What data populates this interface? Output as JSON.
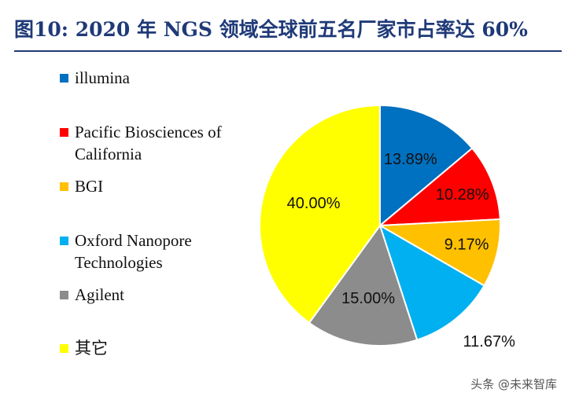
{
  "title": "图10:  2020 年 NGS 领域全球前五名厂家市占率达 60%",
  "watermark": "头条 @未来智库",
  "chart_data": {
    "type": "pie",
    "title": "",
    "legend_position": "left",
    "slices": [
      {
        "name": "illumina",
        "value": 13.89,
        "label": "13.89%",
        "color": "#0070c0"
      },
      {
        "name": "Pacific Biosciences of\nCalifornia",
        "value": 10.28,
        "label": "10.28%",
        "color": "#ff0000"
      },
      {
        "name": "BGI",
        "value": 9.17,
        "label": "9.17%",
        "color": "#ffc000"
      },
      {
        "name": "Oxford Nanopore\nTechnologies",
        "value": 11.67,
        "label": "11.67%",
        "color": "#00b0f0"
      },
      {
        "name": "Agilent",
        "value": 15.0,
        "label": "15.00%",
        "color": "#8c8c8c"
      },
      {
        "name": "其它",
        "value": 40.0,
        "label": "40.00%",
        "color": "#ffff00"
      }
    ]
  }
}
